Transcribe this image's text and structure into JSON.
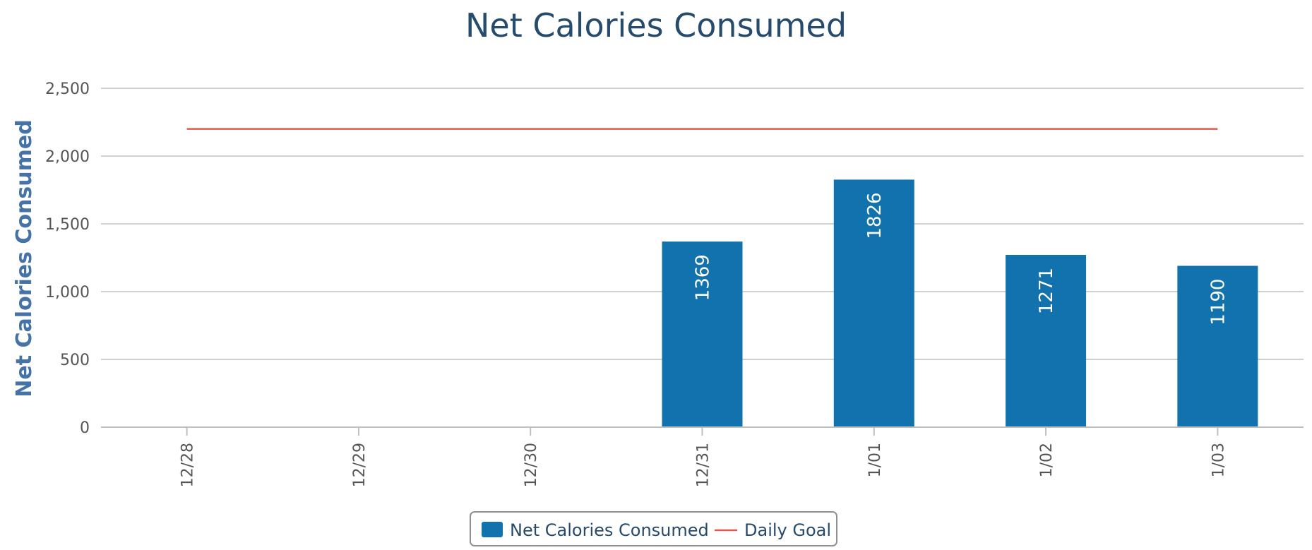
{
  "chart_data": {
    "type": "bar",
    "title": "Net Calories Consumed",
    "ylabel": "Net Calories Consumed",
    "xlabel": "",
    "categories": [
      "12/28",
      "12/29",
      "12/30",
      "12/31",
      "1/01",
      "1/02",
      "1/03"
    ],
    "y_tick_labels": [
      "0",
      "500",
      "1,000",
      "1,500",
      "2,000",
      "2,500"
    ],
    "y_ticks": [
      0,
      500,
      1000,
      1500,
      2000,
      2500
    ],
    "ylim": [
      0,
      2500
    ],
    "grid": true,
    "legend_position": "bottom-center",
    "series": [
      {
        "name": "Net Calories Consumed",
        "type": "bar",
        "color": "#1172ad",
        "values": [
          null,
          null,
          null,
          1369,
          1826,
          1271,
          1190
        ],
        "data_labels": [
          "",
          "",
          "",
          "1369",
          "1826",
          "1271",
          "1190"
        ]
      },
      {
        "name": "Daily Goal",
        "type": "line",
        "color": "#e8574b",
        "values": [
          2200,
          2200,
          2200,
          2200,
          2200,
          2200,
          2200
        ]
      }
    ]
  }
}
